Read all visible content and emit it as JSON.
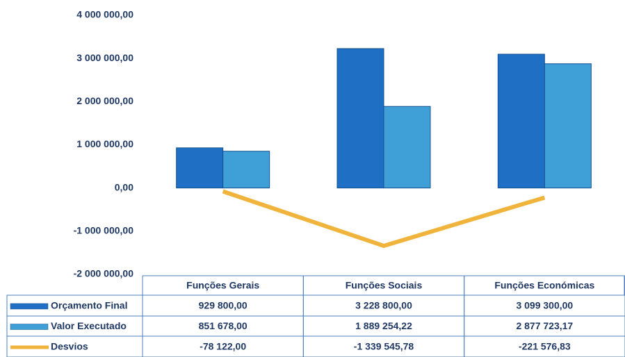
{
  "chart_data": {
    "type": "bar",
    "categories": [
      "Funções Gerais",
      "Funções Sociais",
      "Funções Económicas"
    ],
    "series": [
      {
        "name": "Orçamento Final",
        "type": "bar",
        "color": "#1f6fc4",
        "values": [
          929800,
          3228800,
          3099300
        ],
        "value_labels": [
          "929 800,00",
          "3 228 800,00",
          "3 099 300,00"
        ]
      },
      {
        "name": "Valor  Executado",
        "type": "bar",
        "color": "#3fa0d8",
        "values": [
          851678,
          1889254.22,
          2877723.17
        ],
        "value_labels": [
          "851 678,00",
          "1 889 254,22",
          "2 877 723,17"
        ]
      },
      {
        "name": "Desvios",
        "type": "line",
        "color": "#f0b43c",
        "values": [
          -78122,
          -1339545.78,
          -221576.83
        ],
        "value_labels": [
          "-78 122,00",
          "-1 339 545,78",
          "-221 576,83"
        ]
      }
    ],
    "ylim": [
      -2000000,
      4000000
    ],
    "yticks": [
      {
        "value": -2000000,
        "label": "-2 000 000,00"
      },
      {
        "value": -1000000,
        "label": "-1 000 000,00"
      },
      {
        "value": 0,
        "label": "0,00"
      },
      {
        "value": 1000000,
        "label": "1 000 000,00"
      },
      {
        "value": 2000000,
        "label": "2 000 000,00"
      },
      {
        "value": 3000000,
        "label": "3 000 000,00"
      },
      {
        "value": 4000000,
        "label": "4 000 000,00"
      }
    ]
  }
}
